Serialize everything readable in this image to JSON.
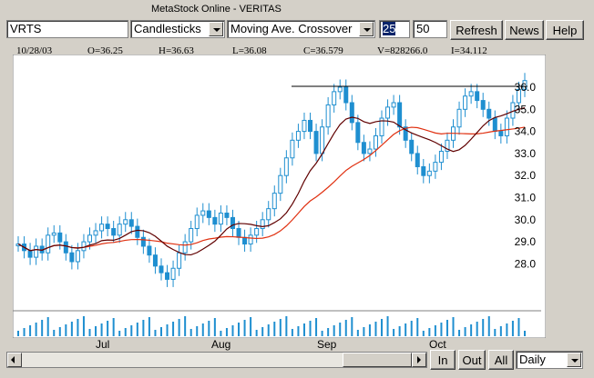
{
  "window_title": "MetaStock Online - VERITAS",
  "toolbar": {
    "symbol": "VRTS",
    "chart_style": "Candlesticks",
    "indicator": "Moving Ave. Crossover",
    "period1": "25",
    "period2": "50",
    "refresh_label": "Refresh",
    "news_label": "News",
    "help_label": "Help"
  },
  "info_bar": {
    "date": "10/28/03",
    "open": "O=36.25",
    "high": "H=36.63",
    "low": "L=36.08",
    "close": "C=36.579",
    "volume": "V=828266.0",
    "indicator": "I=34.112"
  },
  "bottom": {
    "in_label": "In",
    "out_label": "Out",
    "all_label": "All",
    "interval": "Daily"
  },
  "chart_data": {
    "type": "candlestick",
    "y_ticks": [
      "36.0",
      "35.0",
      "34.0",
      "33.0",
      "32.0",
      "31.0",
      "30.0",
      "29.0",
      "28.0"
    ],
    "x_labels": [
      "Jul",
      "Aug",
      "Sep",
      "Oct"
    ],
    "ylim": [
      26.0,
      37.0
    ],
    "resistance_level": 36.05,
    "colors": {
      "candle": "#1f8fd0",
      "ma_fast": "#600000",
      "ma_slow": "#e03010",
      "volume": "#1f8fd0"
    }
  }
}
